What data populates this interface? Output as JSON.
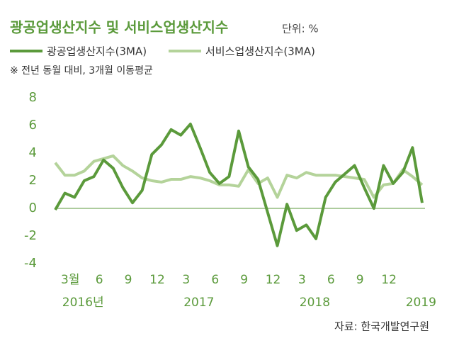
{
  "chart_data": {
    "type": "line",
    "title": "광공업생산지수 및 서비스업생산지수",
    "unit": "단위: %",
    "note": "※ 전년 동월 대비, 3개월 이동평균",
    "source": "자료: 한국개발연구원",
    "categories": [
      null,
      null,
      "3월",
      null,
      null,
      "6",
      null,
      null,
      "9",
      null,
      null,
      "12",
      null,
      null,
      "3",
      null,
      null,
      "6",
      null,
      null,
      "9",
      null,
      null,
      "12",
      null,
      null,
      "3",
      null,
      null,
      "6",
      null,
      null,
      "9",
      null,
      null,
      "12",
      null,
      null,
      null
    ],
    "years": [
      null,
      null,
      "2016년",
      null,
      null,
      null,
      null,
      null,
      null,
      null,
      null,
      null,
      null,
      null,
      "2017",
      null,
      null,
      null,
      null,
      null,
      null,
      null,
      null,
      null,
      null,
      null,
      "2018",
      null,
      null,
      null,
      null,
      null,
      null,
      null,
      null,
      null,
      null,
      "2019",
      null
    ],
    "series": [
      {
        "name": "광공업생산지수(3MA)",
        "color": "#5b9a3b",
        "values": [
          -0.1,
          1.1,
          0.8,
          2.0,
          2.3,
          3.5,
          2.9,
          1.5,
          0.4,
          1.3,
          3.9,
          4.6,
          5.7,
          5.3,
          6.1,
          4.4,
          2.6,
          1.8,
          2.3,
          5.6,
          3.0,
          2.1,
          -0.3,
          -2.7,
          0.3,
          -1.6,
          -1.2,
          -2.2,
          0.8,
          1.9,
          2.5,
          3.1,
          1.5,
          0.0,
          3.1,
          1.8,
          2.6,
          4.4,
          0.4
        ]
      },
      {
        "name": "서비스업생산지수(3MA)",
        "color": "#b4d39a",
        "values": [
          3.3,
          2.4,
          2.4,
          2.7,
          3.4,
          3.6,
          3.8,
          3.1,
          2.7,
          2.2,
          2.0,
          1.9,
          2.1,
          2.1,
          2.3,
          2.2,
          2.0,
          1.7,
          1.7,
          1.6,
          2.8,
          1.8,
          2.2,
          0.8,
          2.4,
          2.2,
          2.6,
          2.4,
          2.4,
          2.4,
          2.3,
          2.2,
          2.1,
          0.8,
          1.7,
          1.8,
          2.8,
          2.3,
          1.7
        ]
      }
    ],
    "ylim": [
      -4,
      8
    ],
    "yticks": [
      -4,
      -2,
      0,
      2,
      4,
      6,
      8
    ],
    "zero_line": true
  }
}
